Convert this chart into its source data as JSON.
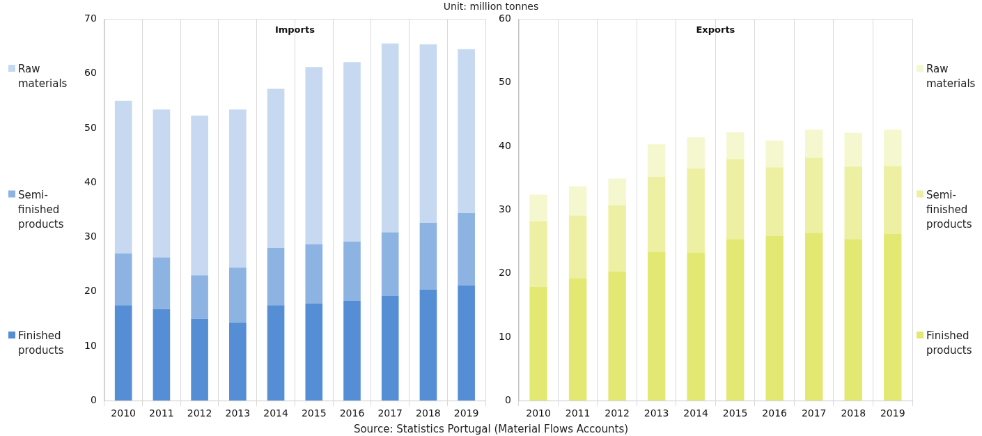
{
  "chart_data": [
    {
      "type": "bar",
      "title": "Imports",
      "subtitle": "Unit: million tonnes",
      "stacked": true,
      "grid": "x",
      "legend": "left",
      "categories": [
        "2010",
        "2011",
        "2012",
        "2013",
        "2014",
        "2015",
        "2016",
        "2017",
        "2018",
        "2019"
      ],
      "ylim": [
        0,
        70
      ],
      "yticks": [
        0,
        10,
        20,
        30,
        40,
        50,
        60,
        70
      ],
      "series": [
        {
          "name": "Finished products",
          "color": "#558ed5",
          "values": [
            17.5,
            16.8,
            15.0,
            14.3,
            17.5,
            17.8,
            18.3,
            19.2,
            20.4,
            21.1
          ]
        },
        {
          "name": "Semi-finished products",
          "color": "#8db3e2",
          "values": [
            9.5,
            9.5,
            8.0,
            10.1,
            10.5,
            10.9,
            10.9,
            11.7,
            12.2,
            13.3
          ]
        },
        {
          "name": "Raw materials",
          "color": "#c6d9f1",
          "values": [
            28.0,
            27.1,
            29.3,
            29.0,
            29.2,
            32.5,
            32.9,
            34.6,
            32.8,
            30.1
          ]
        }
      ]
    },
    {
      "type": "bar",
      "title": "Exports",
      "stacked": true,
      "grid": "x",
      "legend": "right",
      "annotations": [
        "Source: Statistics Portugal (Material Flows Accounts)"
      ],
      "categories": [
        "2010",
        "2011",
        "2012",
        "2013",
        "2014",
        "2015",
        "2016",
        "2017",
        "2018",
        "2019"
      ],
      "ylim": [
        0,
        60
      ],
      "yticks": [
        0,
        10,
        20,
        30,
        40,
        50,
        60
      ],
      "series": [
        {
          "name": "Finished products",
          "color": "#e3e872",
          "values": [
            17.9,
            19.2,
            20.3,
            23.4,
            23.3,
            25.4,
            25.9,
            26.4,
            25.4,
            26.2
          ]
        },
        {
          "name": "Semi-finished products",
          "color": "#edf0a2",
          "values": [
            10.3,
            9.9,
            10.4,
            11.8,
            13.2,
            12.6,
            10.8,
            11.8,
            11.4,
            10.7
          ]
        },
        {
          "name": "Raw materials",
          "color": "#f5f7cf",
          "values": [
            4.2,
            4.6,
            4.2,
            5.1,
            4.9,
            4.2,
            4.2,
            4.4,
            5.3,
            5.7
          ]
        }
      ]
    }
  ]
}
